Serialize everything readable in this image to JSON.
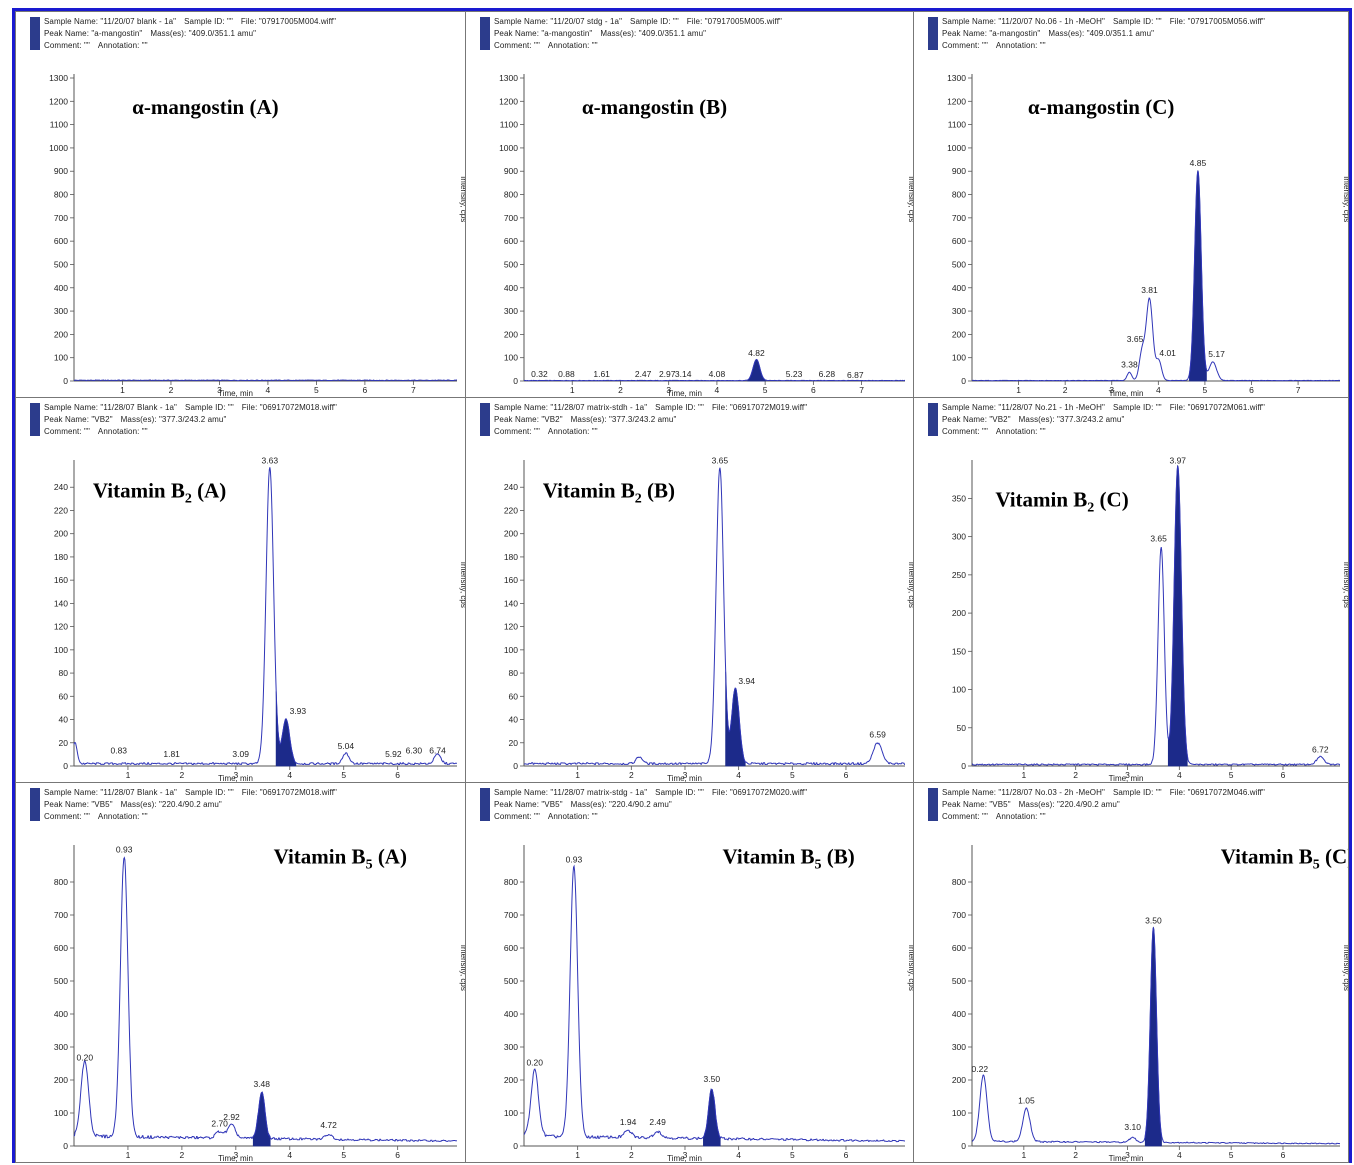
{
  "colors": {
    "trace": "#3036b8",
    "fill": "#1c2a8a",
    "frame": "#1a1ad0"
  },
  "chart_data": [
    {
      "type": "line",
      "header": {
        "sample_name": "Sample Name: \"11/20/07 blank - 1a\"",
        "sample_id": "Sample ID: \"\"",
        "file": "File: \"07917005M004.wiff\"",
        "peak_name": "Peak Name: \"a-mangostin\"",
        "masses": "Mass(es): \"409.0/351.1 amu\"",
        "comment": "Comment: \"\"",
        "annotation": "Annotation: \"\""
      },
      "title": "α-mangostin (A)",
      "xlabel": "Time, min",
      "ylabel": "Intensity, cps",
      "xlim": [
        0,
        7.9
      ],
      "ylim": [
        0,
        1300
      ],
      "yticks": [
        0,
        100,
        200,
        300,
        400,
        500,
        600,
        700,
        800,
        900,
        1000,
        1100,
        1200,
        1300
      ],
      "xticks": [
        1,
        2,
        3,
        4,
        5,
        6,
        7
      ],
      "baseline": 3,
      "peaks": [],
      "labels": [],
      "title_at": [
        1.2,
        1180
      ]
    },
    {
      "type": "line",
      "header": {
        "sample_name": "Sample Name: \"11/20/07 stdg - 1a\"",
        "sample_id": "Sample ID: \"\"",
        "file": "File: \"07917005M005.wiff\"",
        "peak_name": "Peak Name: \"a-mangostin\"",
        "masses": "Mass(es): \"409.0/351.1 amu\"",
        "comment": "Comment: \"\"",
        "annotation": "Annotation: \"\""
      },
      "title": "α-mangostin (B)",
      "xlabel": "Time, min",
      "ylabel": "Intensity, cps",
      "xlim": [
        0,
        7.9
      ],
      "ylim": [
        0,
        1300
      ],
      "yticks": [
        0,
        100,
        200,
        300,
        400,
        500,
        600,
        700,
        800,
        900,
        1000,
        1100,
        1200,
        1300
      ],
      "xticks": [
        1,
        2,
        3,
        4,
        5,
        6,
        7
      ],
      "baseline": 2,
      "peaks": [
        {
          "t": 4.82,
          "h": 90,
          "w": 0.07,
          "filled": true
        }
      ],
      "labels": [
        {
          "text": "0.32",
          "t": 0.32,
          "y": 5
        },
        {
          "text": "0.88",
          "t": 0.88,
          "y": 5
        },
        {
          "text": "1.61",
          "t": 1.61,
          "y": 5
        },
        {
          "text": "2.47",
          "t": 2.47,
          "y": 5
        },
        {
          "text": "2.97",
          "t": 2.97,
          "y": 5
        },
        {
          "text": "3.14",
          "t": 3.3,
          "y": 5
        },
        {
          "text": "4.08",
          "t": 4.0,
          "y": 5
        },
        {
          "text": "4.82",
          "t": 4.82,
          "y": 95
        },
        {
          "text": "5.23",
          "t": 5.6,
          "y": 5
        },
        {
          "text": "6.28",
          "t": 6.28,
          "y": 5
        },
        {
          "text": "6.87",
          "t": 6.87,
          "y": 0
        }
      ],
      "title_at": [
        1.2,
        1180
      ]
    },
    {
      "type": "line",
      "header": {
        "sample_name": "Sample Name: \"11/20/07 No.06 - 1h -MeOH\"",
        "sample_id": "Sample ID: \"\"",
        "file": "File: \"07917005M056.wiff\"",
        "peak_name": "Peak Name: \"a-mangostin\"",
        "masses": "Mass(es): \"409.0/351.1 amu\"",
        "comment": "Comment: \"\"",
        "annotation": "Annotation: \"\""
      },
      "title": "α-mangostin (C)",
      "xlabel": "Time, min",
      "ylabel": "Intensity, cps",
      "xlim": [
        0,
        7.9
      ],
      "ylim": [
        0,
        1300
      ],
      "yticks": [
        0,
        100,
        200,
        300,
        400,
        500,
        600,
        700,
        800,
        900,
        1000,
        1100,
        1200,
        1300
      ],
      "xticks": [
        1,
        2,
        3,
        4,
        5,
        6,
        7
      ],
      "baseline": 2,
      "peaks": [
        {
          "t": 3.38,
          "h": 35,
          "w": 0.05,
          "filled": false
        },
        {
          "t": 3.65,
          "h": 120,
          "w": 0.06,
          "filled": false
        },
        {
          "t": 3.81,
          "h": 350,
          "w": 0.07,
          "filled": false
        },
        {
          "t": 4.01,
          "h": 85,
          "w": 0.06,
          "filled": false
        },
        {
          "t": 4.85,
          "h": 900,
          "w": 0.07,
          "filled": true
        },
        {
          "t": 5.17,
          "h": 80,
          "w": 0.08,
          "filled": false
        }
      ],
      "labels": [
        {
          "text": "3.38",
          "t": 3.38,
          "y": 45
        },
        {
          "text": "3.65",
          "t": 3.5,
          "y": 155
        },
        {
          "text": "3.81",
          "t": 3.81,
          "y": 365
        },
        {
          "text": "4.01",
          "t": 4.2,
          "y": 95
        },
        {
          "text": "4.85",
          "t": 4.85,
          "y": 910
        },
        {
          "text": "5.17",
          "t": 5.25,
          "y": 90
        }
      ],
      "title_at": [
        1.2,
        1180
      ]
    },
    {
      "type": "line",
      "header": {
        "sample_name": "Sample Name: \"11/28/07 Blank - 1a\"",
        "sample_id": "Sample ID: \"\"",
        "file": "File: \"06917072M018.wiff\"",
        "peak_name": "Peak Name: \"VB2\"",
        "masses": "Mass(es): \"377.3/243.2 amu\"",
        "comment": "Comment: \"\"",
        "annotation": "Annotation: \"\""
      },
      "title": "Vitamin B",
      "title_sub": "2",
      "title_suffix": " (A)",
      "xlabel": "Time, min",
      "ylabel": "Intensity, cps",
      "xlim": [
        0,
        7.1
      ],
      "ylim": [
        0,
        260
      ],
      "yticks": [
        0,
        20,
        40,
        60,
        80,
        100,
        120,
        140,
        160,
        180,
        200,
        220,
        240
      ],
      "xticks": [
        1,
        2,
        3,
        4,
        5,
        6
      ],
      "baseline": 2,
      "peaks": [
        {
          "t": 0.02,
          "h": 18,
          "w": 0.04,
          "filled": false
        },
        {
          "t": 3.63,
          "h": 255,
          "w": 0.07,
          "filled": false
        },
        {
          "t": 3.93,
          "h": 38,
          "w": 0.07,
          "filled": true
        },
        {
          "t": 5.04,
          "h": 9,
          "w": 0.06,
          "filled": false
        },
        {
          "t": 6.74,
          "h": 8,
          "w": 0.06,
          "filled": false
        }
      ],
      "labels": [
        {
          "text": "0.83",
          "t": 0.83,
          "y": 8
        },
        {
          "text": "1.81",
          "t": 1.81,
          "y": 5
        },
        {
          "text": "3.09",
          "t": 3.09,
          "y": 5
        },
        {
          "text": "3.63",
          "t": 3.63,
          "y": 258
        },
        {
          "text": "3.93",
          "t": 4.15,
          "y": 42
        },
        {
          "text": "5.04",
          "t": 5.04,
          "y": 12
        },
        {
          "text": "5.92",
          "t": 5.92,
          "y": 5
        },
        {
          "text": "6.30",
          "t": 6.3,
          "y": 8
        },
        {
          "text": "6.74",
          "t": 6.74,
          "y": 8
        }
      ],
      "title_at": [
        0.35,
        238
      ]
    },
    {
      "type": "line",
      "header": {
        "sample_name": "Sample Name: \"11/28/07 matrix-stdh - 1a\"",
        "sample_id": "Sample ID: \"\"",
        "file": "File: \"06917072M019.wiff\"",
        "peak_name": "Peak Name: \"VB2\"",
        "masses": "Mass(es): \"377.3/243.2 amu\"",
        "comment": "Comment: \"\"",
        "annotation": "Annotation: \"\""
      },
      "title": "Vitamin B",
      "title_sub": "2",
      "title_suffix": " (B)",
      "xlabel": "Time, min",
      "ylabel": "Intensity, cps",
      "xlim": [
        0,
        7.1
      ],
      "ylim": [
        0,
        260
      ],
      "yticks": [
        0,
        20,
        40,
        60,
        80,
        100,
        120,
        140,
        160,
        180,
        200,
        220,
        240
      ],
      "xticks": [
        1,
        2,
        3,
        4,
        5,
        6
      ],
      "baseline": 2,
      "peaks": [
        {
          "t": 2.15,
          "h": 6,
          "w": 0.06,
          "filled": false
        },
        {
          "t": 3.65,
          "h": 255,
          "w": 0.07,
          "filled": false
        },
        {
          "t": 3.94,
          "h": 65,
          "w": 0.07,
          "filled": true
        },
        {
          "t": 6.59,
          "h": 18,
          "w": 0.08,
          "filled": false
        }
      ],
      "labels": [
        {
          "text": "3.65",
          "t": 3.65,
          "y": 258
        },
        {
          "text": "3.94",
          "t": 4.15,
          "y": 68
        },
        {
          "text": "6.59",
          "t": 6.59,
          "y": 22
        }
      ],
      "title_at": [
        0.35,
        238
      ]
    },
    {
      "type": "line",
      "header": {
        "sample_name": "Sample Name: \"11/28/07 No.21 - 1h -MeOH\"",
        "sample_id": "Sample ID: \"\"",
        "file": "File: \"06917072M061.wiff\"",
        "peak_name": "Peak Name: \"VB2\"",
        "masses": "Mass(es): \"377.3/243.2 amu\"",
        "comment": "Comment: \"\"",
        "annotation": "Annotation: \"\""
      },
      "title": "Vitamin B",
      "title_sub": "2",
      "title_suffix": " (C)",
      "xlabel": "Time, min",
      "ylabel": "Intensity, cps",
      "xlim": [
        0,
        7.1
      ],
      "ylim": [
        0,
        395
      ],
      "yticks": [
        0,
        50,
        100,
        150,
        200,
        250,
        300,
        350
      ],
      "xticks": [
        1,
        2,
        3,
        4,
        5,
        6
      ],
      "baseline": 2,
      "peaks": [
        {
          "t": 3.65,
          "h": 285,
          "w": 0.06,
          "filled": false
        },
        {
          "t": 3.97,
          "h": 390,
          "w": 0.07,
          "filled": true
        },
        {
          "t": 6.72,
          "h": 10,
          "w": 0.07,
          "filled": false
        }
      ],
      "labels": [
        {
          "text": "3.65",
          "t": 3.6,
          "y": 290
        },
        {
          "text": "3.97",
          "t": 3.97,
          "y": 392
        },
        {
          "text": "6.72",
          "t": 6.72,
          "y": 14
        }
      ],
      "title_at": [
        0.45,
        350
      ]
    },
    {
      "type": "line",
      "header": {
        "sample_name": "Sample Name: \"11/28/07 Blank - 1a\"",
        "sample_id": "Sample ID: \"\"",
        "file": "File: \"06917072M018.wiff\"",
        "peak_name": "Peak Name: \"VB5\"",
        "masses": "Mass(es): \"220.4/90.2 amu\"",
        "comment": "Comment: \"\"",
        "annotation": "Annotation: \"\""
      },
      "title": "Vitamin B",
      "title_sub": "5",
      "title_suffix": " (A)",
      "xlabel": "Time, min",
      "ylabel": "Intensity, cps",
      "xlim": [
        0,
        7.1
      ],
      "ylim": [
        0,
        900
      ],
      "yticks": [
        0,
        100,
        200,
        300,
        400,
        500,
        600,
        700,
        800
      ],
      "xticks": [
        1,
        2,
        3,
        4,
        5,
        6
      ],
      "baseline": 25,
      "peaks": [
        {
          "t": 0.2,
          "h": 230,
          "w": 0.07,
          "filled": false
        },
        {
          "t": 0.93,
          "h": 850,
          "w": 0.07,
          "filled": false
        },
        {
          "t": 2.7,
          "h": 20,
          "w": 0.07,
          "filled": false
        },
        {
          "t": 2.92,
          "h": 40,
          "w": 0.07,
          "filled": false
        },
        {
          "t": 3.48,
          "h": 140,
          "w": 0.06,
          "filled": true
        },
        {
          "t": 4.72,
          "h": 15,
          "w": 0.07,
          "filled": false
        }
      ],
      "labels": [
        {
          "text": "0.20",
          "t": 0.2,
          "y": 250
        },
        {
          "text": "0.93",
          "t": 0.93,
          "y": 880
        },
        {
          "text": "2.70",
          "t": 2.7,
          "y": 50
        },
        {
          "text": "2.92",
          "t": 2.92,
          "y": 70
        },
        {
          "text": "3.48",
          "t": 3.48,
          "y": 170
        },
        {
          "text": "4.72",
          "t": 4.72,
          "y": 45
        }
      ],
      "title_at": [
        3.7,
        880
      ]
    },
    {
      "type": "line",
      "header": {
        "sample_name": "Sample Name: \"11/28/07 matrix-stdg - 1a\"",
        "sample_id": "Sample ID: \"\"",
        "file": "File: \"06917072M020.wiff\"",
        "peak_name": "Peak Name: \"VB5\"",
        "masses": "Mass(es): \"220.4/90.2 amu\"",
        "comment": "Comment: \"\"",
        "annotation": "Annotation: \"\""
      },
      "title": "Vitamin B",
      "title_sub": "5",
      "title_suffix": " (B)",
      "xlabel": "Time, min",
      "ylabel": "Intensity, cps",
      "xlim": [
        0,
        7.1
      ],
      "ylim": [
        0,
        900
      ],
      "yticks": [
        0,
        100,
        200,
        300,
        400,
        500,
        600,
        700,
        800
      ],
      "xticks": [
        1,
        2,
        3,
        4,
        5,
        6
      ],
      "baseline": 25,
      "peaks": [
        {
          "t": 0.2,
          "h": 200,
          "w": 0.07,
          "filled": false
        },
        {
          "t": 0.93,
          "h": 820,
          "w": 0.07,
          "filled": false
        },
        {
          "t": 1.94,
          "h": 20,
          "w": 0.07,
          "filled": false
        },
        {
          "t": 2.49,
          "h": 20,
          "w": 0.07,
          "filled": false
        },
        {
          "t": 3.5,
          "h": 150,
          "w": 0.06,
          "filled": true
        }
      ],
      "labels": [
        {
          "text": "0.20",
          "t": 0.2,
          "y": 235
        },
        {
          "text": "0.93",
          "t": 0.93,
          "y": 850
        },
        {
          "text": "1.94",
          "t": 1.94,
          "y": 55
        },
        {
          "text": "2.49",
          "t": 2.49,
          "y": 55
        },
        {
          "text": "3.50",
          "t": 3.5,
          "y": 185
        }
      ],
      "title_at": [
        3.7,
        880
      ]
    },
    {
      "type": "line",
      "header": {
        "sample_name": "Sample Name: \"11/28/07 No.03 - 2h -MeOH\"",
        "sample_id": "Sample ID: \"\"",
        "file": "File: \"06917072M046.wiff\"",
        "peak_name": "Peak Name: \"VB5\"",
        "masses": "Mass(es): \"220.4/90.2 amu\"",
        "comment": "Comment: \"\"",
        "annotation": "Annotation: \"\""
      },
      "title": "Vitamin B",
      "title_sub": "5",
      "title_suffix": " (C)",
      "xlabel": "Time, min",
      "ylabel": "Intensity, cps",
      "xlim": [
        0,
        7.1
      ],
      "ylim": [
        0,
        900
      ],
      "yticks": [
        0,
        100,
        200,
        300,
        400,
        500,
        600,
        700,
        800
      ],
      "xticks": [
        1,
        2,
        3,
        4,
        5,
        6
      ],
      "baseline": 12,
      "peaks": [
        {
          "t": 0.22,
          "h": 200,
          "w": 0.07,
          "filled": false
        },
        {
          "t": 1.05,
          "h": 100,
          "w": 0.07,
          "filled": false
        },
        {
          "t": 3.1,
          "h": 15,
          "w": 0.06,
          "filled": false
        },
        {
          "t": 3.5,
          "h": 650,
          "w": 0.06,
          "filled": true
        }
      ],
      "labels": [
        {
          "text": "0.22",
          "t": 0.15,
          "y": 215
        },
        {
          "text": "1.05",
          "t": 1.05,
          "y": 120
        },
        {
          "text": "3.10",
          "t": 3.1,
          "y": 40
        },
        {
          "text": "3.50",
          "t": 3.5,
          "y": 665
        }
      ],
      "title_at": [
        4.8,
        880
      ]
    }
  ]
}
